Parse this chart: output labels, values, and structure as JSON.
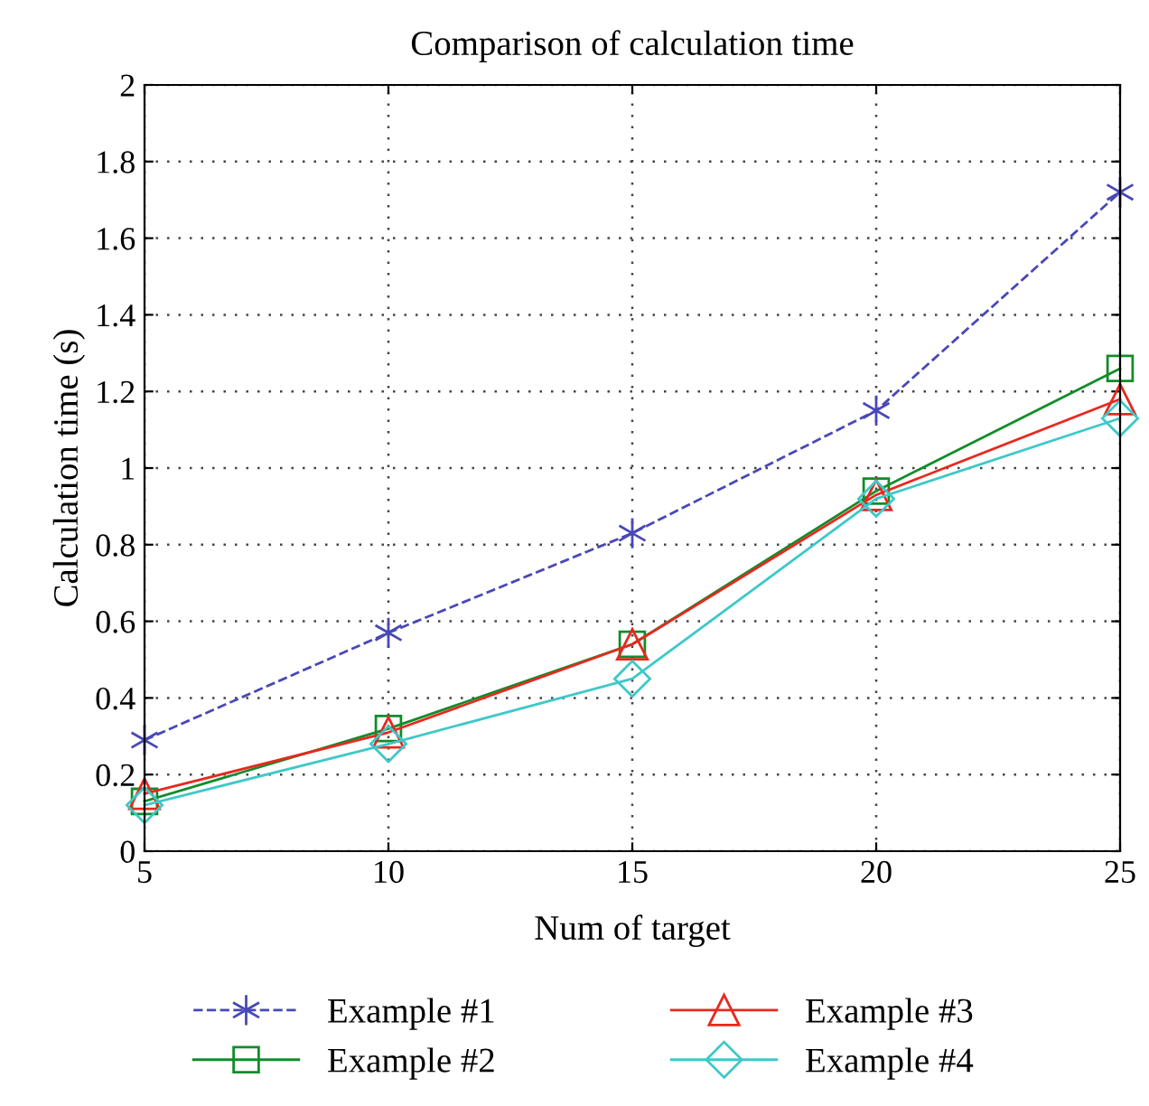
{
  "chart_data": {
    "type": "line",
    "title": "Comparison of calculation time",
    "xlabel": "Num of target",
    "ylabel": "Calculation time (s)",
    "x": [
      5,
      10,
      15,
      20,
      25
    ],
    "series": [
      {
        "name": "Example #1",
        "color": "#4848b8",
        "values": [
          0.29,
          0.57,
          0.83,
          1.15,
          1.72
        ],
        "marker": "cross",
        "line_style": "dashed"
      },
      {
        "name": "Example #2",
        "color": "#118c2a",
        "values": [
          0.13,
          0.32,
          0.54,
          0.94,
          1.26
        ],
        "marker": "square",
        "line_style": "solid"
      },
      {
        "name": "Example #3",
        "color": "#e8281e",
        "values": [
          0.15,
          0.31,
          0.54,
          0.93,
          1.18
        ],
        "marker": "triangle",
        "line_style": "solid"
      },
      {
        "name": "Example #4",
        "color": "#3ec8c8",
        "values": [
          0.12,
          0.28,
          0.45,
          0.92,
          1.13
        ],
        "marker": "diamond",
        "line_style": "solid"
      }
    ],
    "xlim": [
      5,
      25
    ],
    "xticks": [
      5,
      10,
      15,
      20,
      25
    ],
    "ylim": [
      0,
      2
    ],
    "yticks": [
      0,
      0.2,
      0.4,
      0.6,
      0.8,
      1,
      1.2,
      1.4,
      1.6,
      1.8,
      2
    ],
    "grid": true,
    "legend": "bottom"
  }
}
